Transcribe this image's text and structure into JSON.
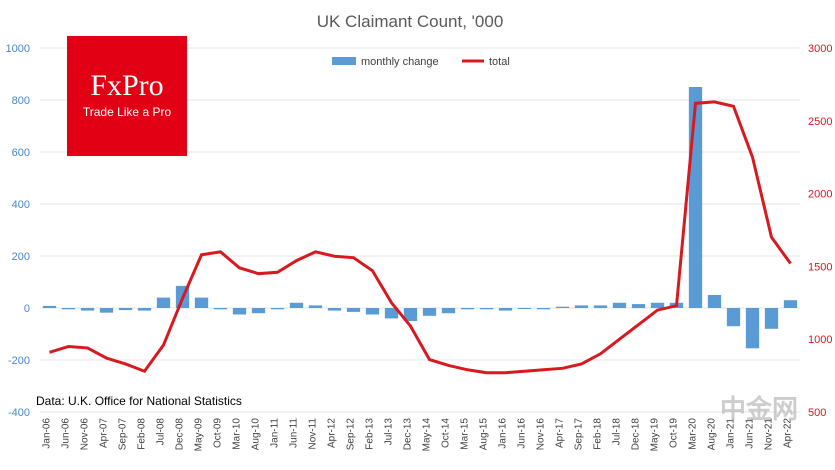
{
  "chart_data": {
    "type": "bar+line",
    "title": "UK Claimant Count, '000",
    "legend": [
      "monthly change",
      "total"
    ],
    "y_left": {
      "min": -400,
      "max": 1000,
      "ticks": [
        -400,
        -200,
        0,
        200,
        400,
        600,
        800,
        1000
      ]
    },
    "y_right": {
      "min": 500,
      "max": 3000,
      "ticks": [
        500,
        1000,
        1500,
        2000,
        2500,
        3000
      ]
    },
    "categories": [
      "Jan-06",
      "Jun-06",
      "Nov-06",
      "Apr-07",
      "Sep-07",
      "Feb-08",
      "Jul-08",
      "Dec-08",
      "May-09",
      "Oct-09",
      "Mar-10",
      "Aug-10",
      "Jan-11",
      "Jun-11",
      "Nov-11",
      "Apr-12",
      "Sep-12",
      "Feb-13",
      "Jul-13",
      "Dec-13",
      "May-14",
      "Oct-14",
      "Mar-15",
      "Aug-15",
      "Jan-16",
      "Jun-16",
      "Nov-16",
      "Apr-17",
      "Sep-17",
      "Feb-18",
      "Jul-18",
      "Dec-18",
      "May-19",
      "Oct-19",
      "Mar-20",
      "Aug-20",
      "Jan-21",
      "Jun-21",
      "Nov-21",
      "Apr-22"
    ],
    "series": [
      {
        "name": "monthly change",
        "axis": "left",
        "values": [
          8,
          -5,
          -10,
          -18,
          -8,
          -10,
          40,
          85,
          40,
          -5,
          -25,
          -20,
          -5,
          20,
          10,
          -10,
          -15,
          -25,
          -40,
          -50,
          -30,
          -20,
          -5,
          -5,
          -10,
          -3,
          -5,
          5,
          10,
          10,
          20,
          15,
          20,
          20,
          850,
          50,
          -70,
          -155,
          -80,
          30
        ]
      },
      {
        "name": "total",
        "axis": "right",
        "values": [
          910,
          950,
          940,
          870,
          830,
          780,
          960,
          1280,
          1580,
          1600,
          1490,
          1450,
          1460,
          1540,
          1600,
          1570,
          1560,
          1470,
          1250,
          1090,
          860,
          820,
          790,
          770,
          770,
          780,
          790,
          800,
          830,
          900,
          1000,
          1100,
          1200,
          1230,
          2620,
          2630,
          2600,
          2250,
          1700,
          1520
        ]
      }
    ]
  },
  "footnote": "Data: U.K. Office for National Statistics",
  "logo": {
    "name": "FxPro",
    "tagline": "Trade Like a Pro"
  },
  "watermark": "中金网"
}
